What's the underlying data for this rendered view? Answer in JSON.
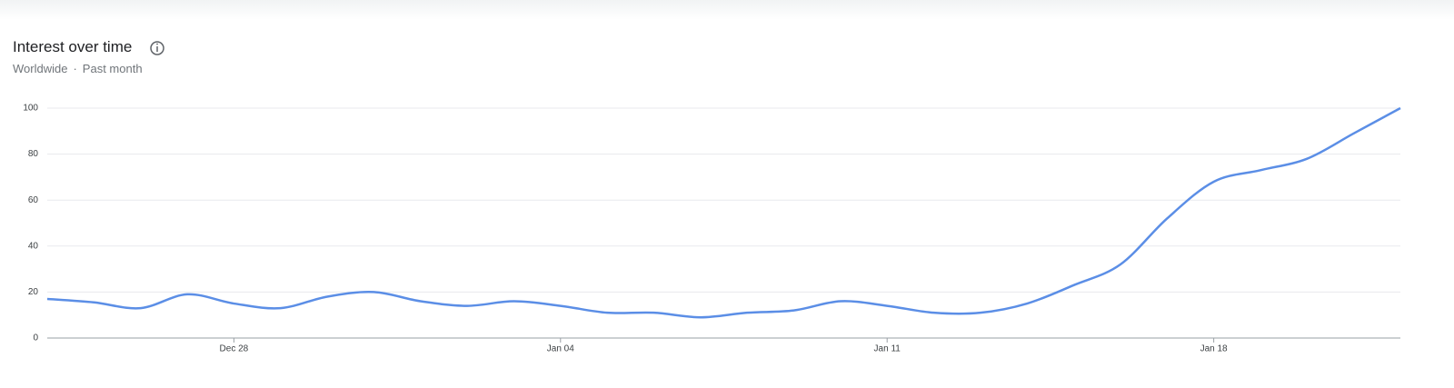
{
  "chart_data": {
    "type": "line",
    "title": "Interest over time",
    "subtitle": {
      "geo": "Worldwide",
      "separator": "·",
      "period": "Past month"
    },
    "categories": [
      null,
      null,
      null,
      null,
      "Dec 28",
      null,
      null,
      null,
      null,
      null,
      null,
      "Jan 04",
      null,
      null,
      null,
      null,
      null,
      null,
      "Jan 11",
      null,
      null,
      null,
      null,
      null,
      null,
      "Jan 18",
      null,
      null,
      null,
      null
    ],
    "series": [
      {
        "name": "Interest",
        "color": "#5b8ee6",
        "values": [
          17,
          15.5,
          13,
          19,
          15,
          13,
          18,
          20,
          16,
          14,
          16,
          14,
          11,
          11,
          9,
          11,
          12,
          16,
          14,
          11,
          11,
          15,
          23,
          32,
          52,
          68,
          73,
          78,
          89,
          100
        ]
      }
    ],
    "ylim": [
      0,
      100
    ],
    "yticks": [
      0,
      20,
      40,
      60,
      80,
      100
    ],
    "grid": true
  }
}
